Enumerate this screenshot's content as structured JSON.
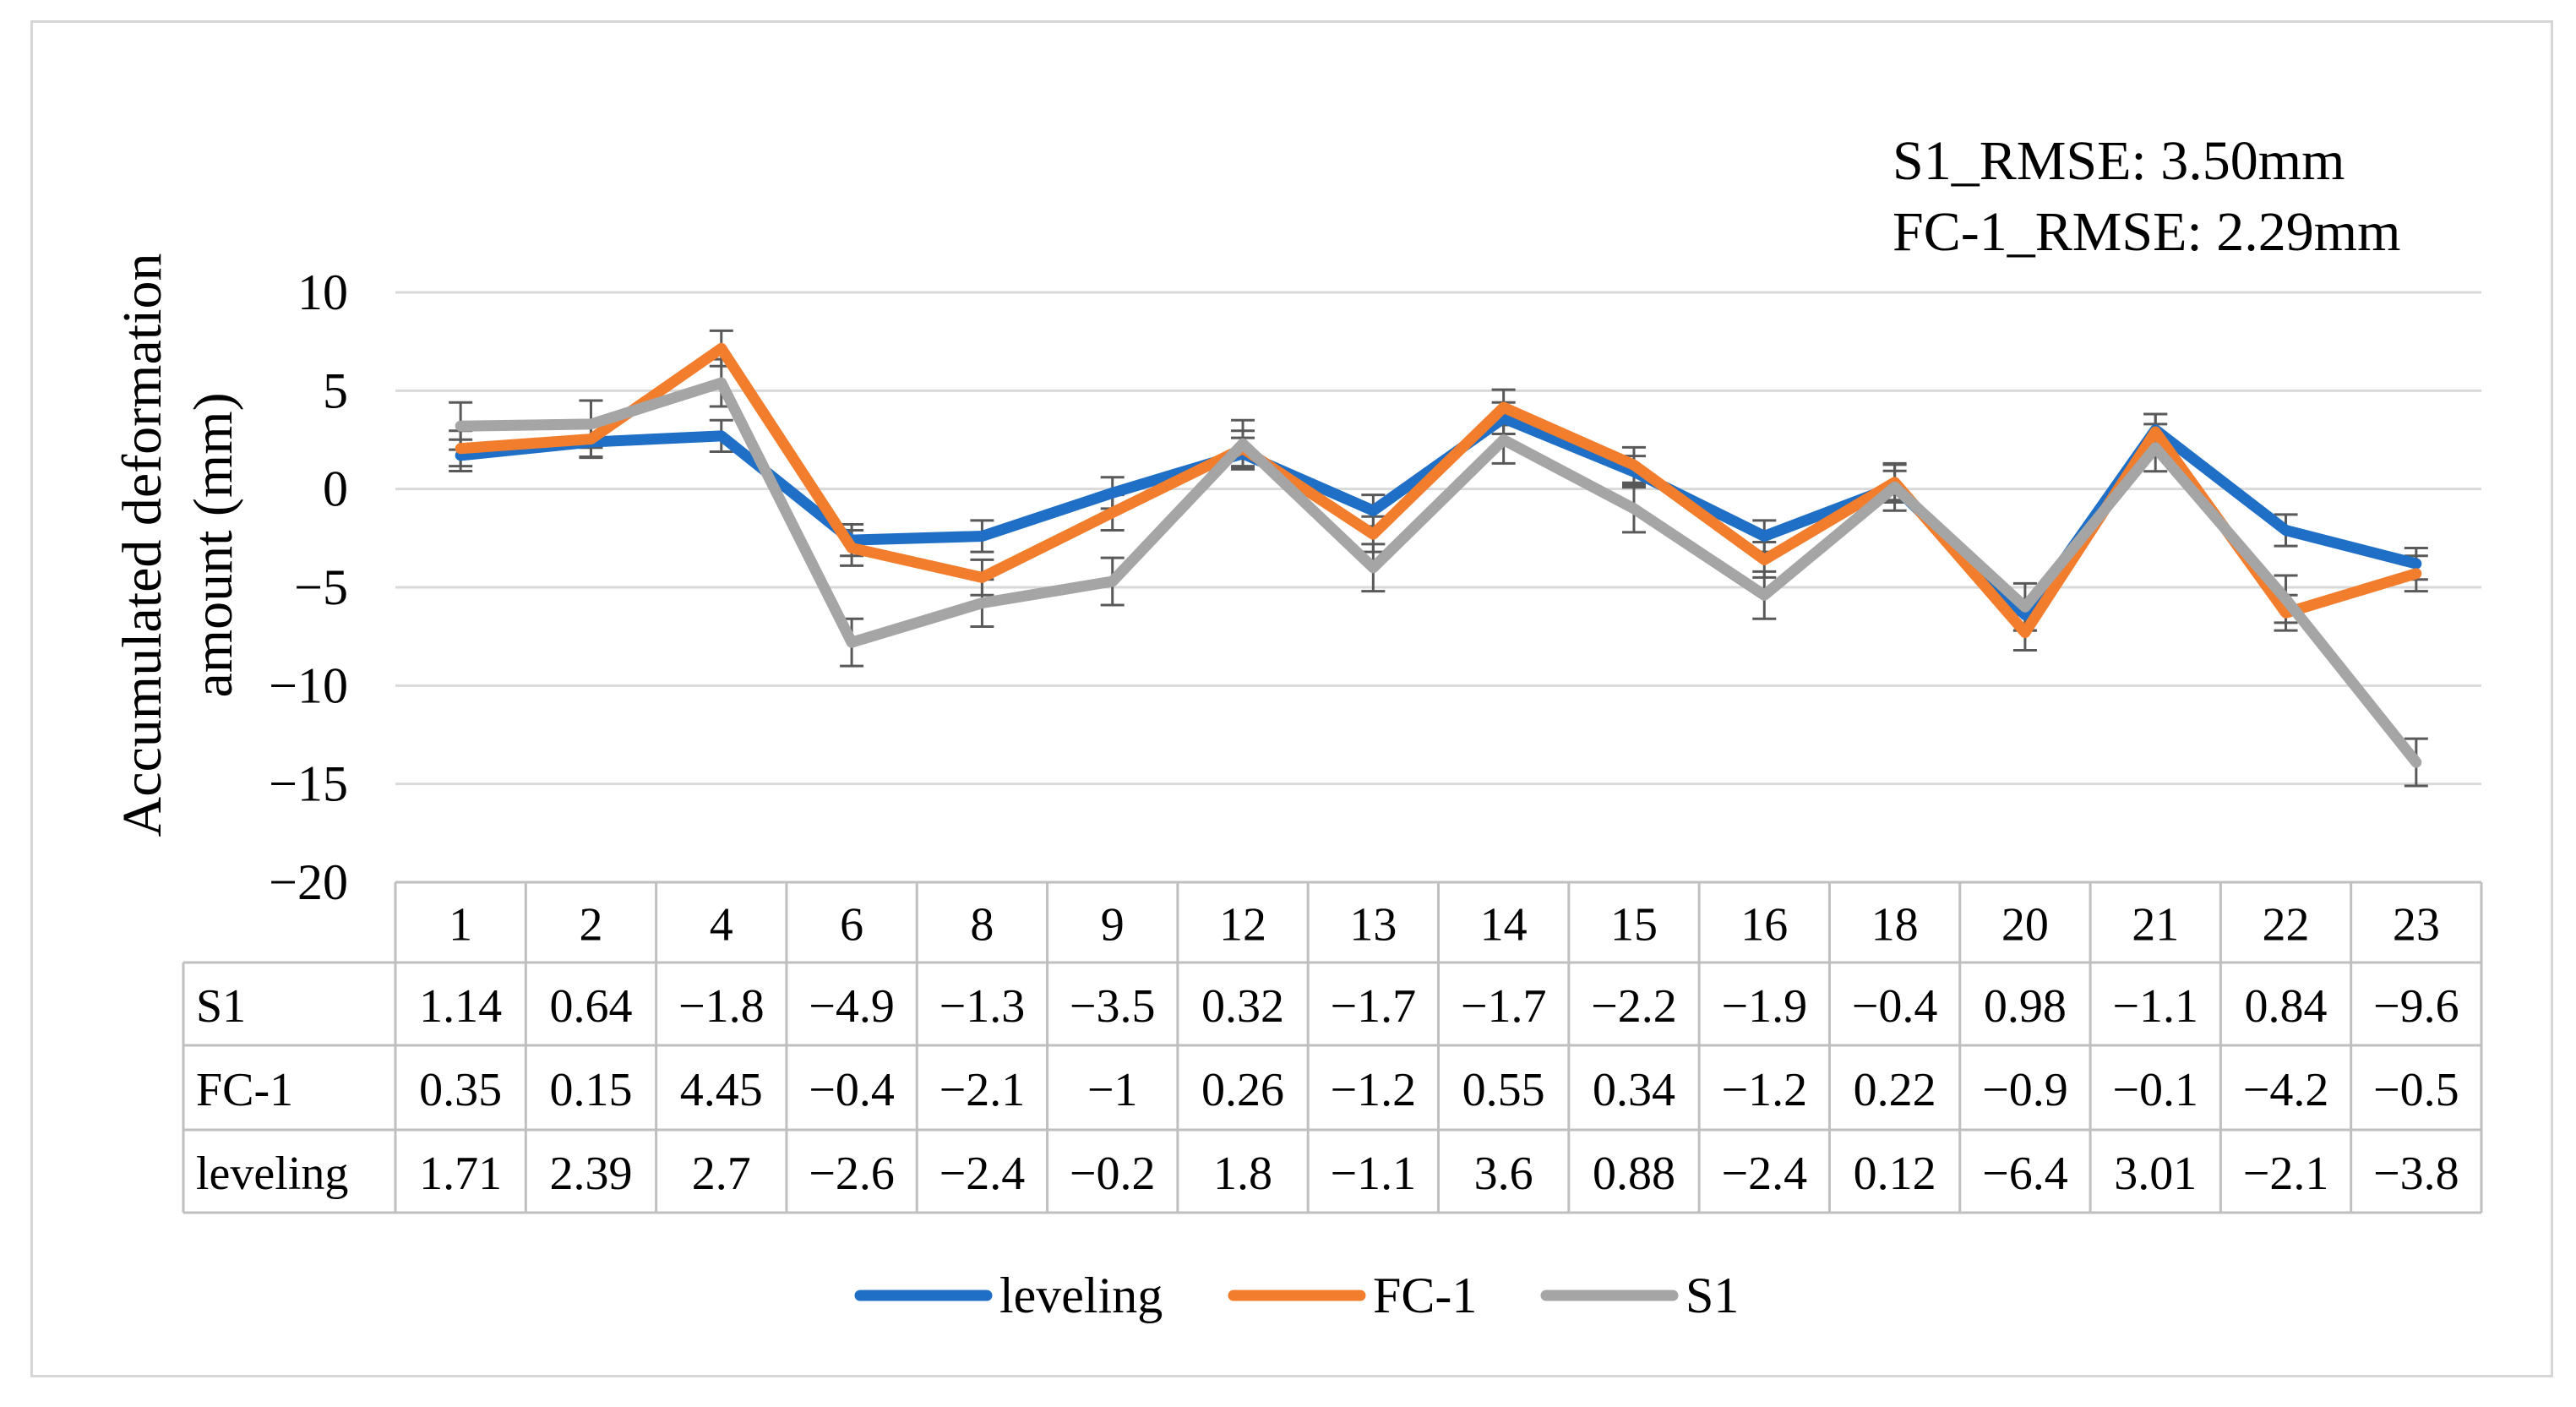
{
  "chart_data": {
    "type": "line",
    "annotations": [
      "S1_RMSE: 3.50mm",
      "FC-1_RMSE: 2.29mm"
    ],
    "ylabel_lines": [
      "Accumulated deformation",
      "amount (mm)"
    ],
    "ylim": [
      -20,
      10
    ],
    "yticks": [
      10,
      5,
      0,
      -5,
      -10,
      -15,
      -20
    ],
    "ytick_labels": [
      "10",
      "5",
      "0",
      "−5",
      "−10",
      "−15",
      "−20"
    ],
    "grid": true,
    "legend_position": "bottom",
    "categories": [
      "1",
      "2",
      "4",
      "6",
      "8",
      "9",
      "12",
      "13",
      "14",
      "15",
      "16",
      "18",
      "20",
      "21",
      "22",
      "23"
    ],
    "series": [
      {
        "name": "leveling",
        "color": "#1f6fc6",
        "values": [
          1.71,
          2.39,
          2.7,
          -2.6,
          -2.4,
          -0.2,
          1.8,
          -1.1,
          3.6,
          0.88,
          -2.4,
          0.12,
          -6.4,
          3.01,
          -2.1,
          -3.8
        ],
        "error": 0.8
      },
      {
        "name": "FC-1",
        "color": "#f27d2c",
        "values": [
          2.06,
          2.54,
          7.15,
          -3.0,
          -4.5,
          -1.2,
          2.06,
          -2.3,
          4.15,
          1.22,
          -3.6,
          0.34,
          -7.3,
          2.91,
          -6.3,
          -4.3
        ],
        "error": 0.9
      },
      {
        "name": "S1",
        "color": "#a5a5a5",
        "values": [
          3.2,
          3.3,
          5.4,
          -7.8,
          -5.8,
          -4.7,
          2.3,
          -4.0,
          2.5,
          -1.0,
          -5.4,
          0.1,
          -6.0,
          2.1,
          -5.6,
          -13.9
        ],
        "error": 1.2
      }
    ],
    "table": {
      "rows": [
        {
          "label": "S1",
          "values": [
            "1.14",
            "0.64",
            "−1.8",
            "−4.9",
            "−1.3",
            "−3.5",
            "0.32",
            "−1.7",
            "−1.7",
            "−2.2",
            "−1.9",
            "−0.4",
            "0.98",
            "−1.1",
            "0.84",
            "−9.6"
          ]
        },
        {
          "label": "FC-1",
          "values": [
            "0.35",
            "0.15",
            "4.45",
            "−0.4",
            "−2.1",
            "−1",
            "0.26",
            "−1.2",
            "0.55",
            "0.34",
            "−1.2",
            "0.22",
            "−0.9",
            "−0.1",
            "−4.2",
            "−0.5"
          ]
        },
        {
          "label": "leveling",
          "values": [
            "1.71",
            "2.39",
            "2.7",
            "−2.6",
            "−2.4",
            "−0.2",
            "1.8",
            "−1.1",
            "3.6",
            "0.88",
            "−2.4",
            "0.12",
            "−6.4",
            "3.01",
            "−2.1",
            "−3.8"
          ]
        }
      ]
    },
    "legend": [
      "leveling",
      "FC-1",
      "S1"
    ]
  }
}
